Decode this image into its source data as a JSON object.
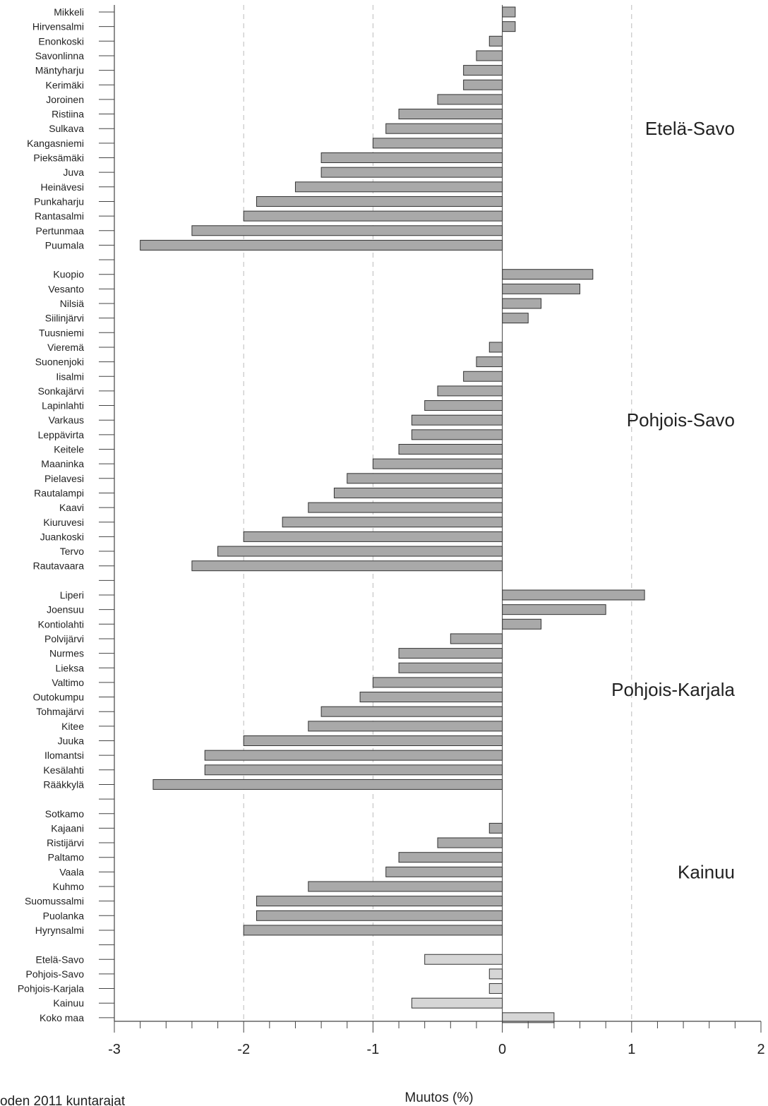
{
  "chart_data": {
    "type": "bar",
    "orientation": "horizontal",
    "xlabel": "Muutos (%)",
    "xlim": [
      -3,
      2
    ],
    "x_ticks": [
      -3,
      -2,
      -1,
      0,
      1,
      2
    ],
    "x_tick_labels": [
      "-3",
      "-2",
      "-1",
      "0",
      "1",
      "2"
    ],
    "grid": "dashed vertical lines at -2, -1 and 1",
    "footnote": "oden 2011 kuntarajat",
    "colors": {
      "municipality_bar": "#a9a9a9",
      "summary_bar": "#d6d6d6",
      "bar_edge": "#333333",
      "grid": "#bbbbbb"
    },
    "categories": [
      "Mikkeli",
      "Hirvensalmi",
      "Enonkoski",
      "Savonlinna",
      "Mäntyharju",
      "Kerimäki",
      "Joroinen",
      "Ristiina",
      "Sulkava",
      "Kangasniemi",
      "Pieksämäki",
      "Juva",
      "Heinävesi",
      "Punkaharju",
      "Rantasalmi",
      "Pertunmaa",
      "Puumala",
      "",
      "Kuopio",
      "Vesanto",
      "Nilsiä",
      "Siilinjärvi",
      "Tuusniemi",
      "Vieremä",
      "Suonenjoki",
      "Iisalmi",
      "Sonkajärvi",
      "Lapinlahti",
      "Varkaus",
      "Leppävirta",
      "Keitele",
      "Maaninka",
      "Pielavesi",
      "Rautalampi",
      "Kaavi",
      "Kiuruvesi",
      "Juankoski",
      "Tervo",
      "Rautavaara",
      "",
      "Liperi",
      "Joensuu",
      "Kontiolahti",
      "Polvijärvi",
      "Nurmes",
      "Lieksa",
      "Valtimo",
      "Outokumpu",
      "Tohmajärvi",
      "Kitee",
      "Juuka",
      "Ilomantsi",
      "Kesälahti",
      "Rääkkylä",
      "",
      "Sotkamo",
      "Kajaani",
      "Ristijärvi",
      "Paltamo",
      "Vaala",
      "Kuhmo",
      "Suomussalmi",
      "Puolanka",
      "Hyrynsalmi",
      "",
      "Etelä-Savo",
      "Pohjois-Savo",
      "Pohjois-Karjala",
      "Kainuu",
      "Koko maa"
    ],
    "values": [
      0.1,
      0.1,
      -0.1,
      -0.2,
      -0.3,
      -0.3,
      -0.5,
      -0.8,
      -0.9,
      -1.0,
      -1.4,
      -1.4,
      -1.6,
      -1.9,
      -2.0,
      -2.4,
      -2.8,
      null,
      0.7,
      0.6,
      0.3,
      0.2,
      0.0,
      -0.1,
      -0.2,
      -0.3,
      -0.5,
      -0.6,
      -0.7,
      -0.7,
      -0.8,
      -1.0,
      -1.2,
      -1.3,
      -1.5,
      -1.7,
      -2.0,
      -2.2,
      -2.4,
      null,
      1.1,
      0.8,
      0.3,
      -0.4,
      -0.8,
      -0.8,
      -1.0,
      -1.1,
      -1.4,
      -1.5,
      -2.0,
      -2.3,
      -2.3,
      -2.7,
      null,
      0.0,
      -0.1,
      -0.5,
      -0.8,
      -0.9,
      -1.5,
      -1.9,
      -1.9,
      -2.0,
      null,
      -0.6,
      -0.1,
      -0.1,
      -0.7,
      0.4
    ],
    "summary_categories": [
      "Etelä-Savo",
      "Pohjois-Savo",
      "Pohjois-Karjala",
      "Kainuu",
      "Koko maa"
    ],
    "groups": [
      {
        "name": "Etelä-Savo",
        "first": "Mikkeli",
        "last": "Puumala"
      },
      {
        "name": "Pohjois-Savo",
        "first": "Kuopio",
        "last": "Rautavaara"
      },
      {
        "name": "Pohjois-Karjala",
        "first": "Liperi",
        "last": "Rääkkylä"
      },
      {
        "name": "Kainuu",
        "first": "Sotkamo",
        "last": "Hyrynsalmi"
      }
    ]
  }
}
